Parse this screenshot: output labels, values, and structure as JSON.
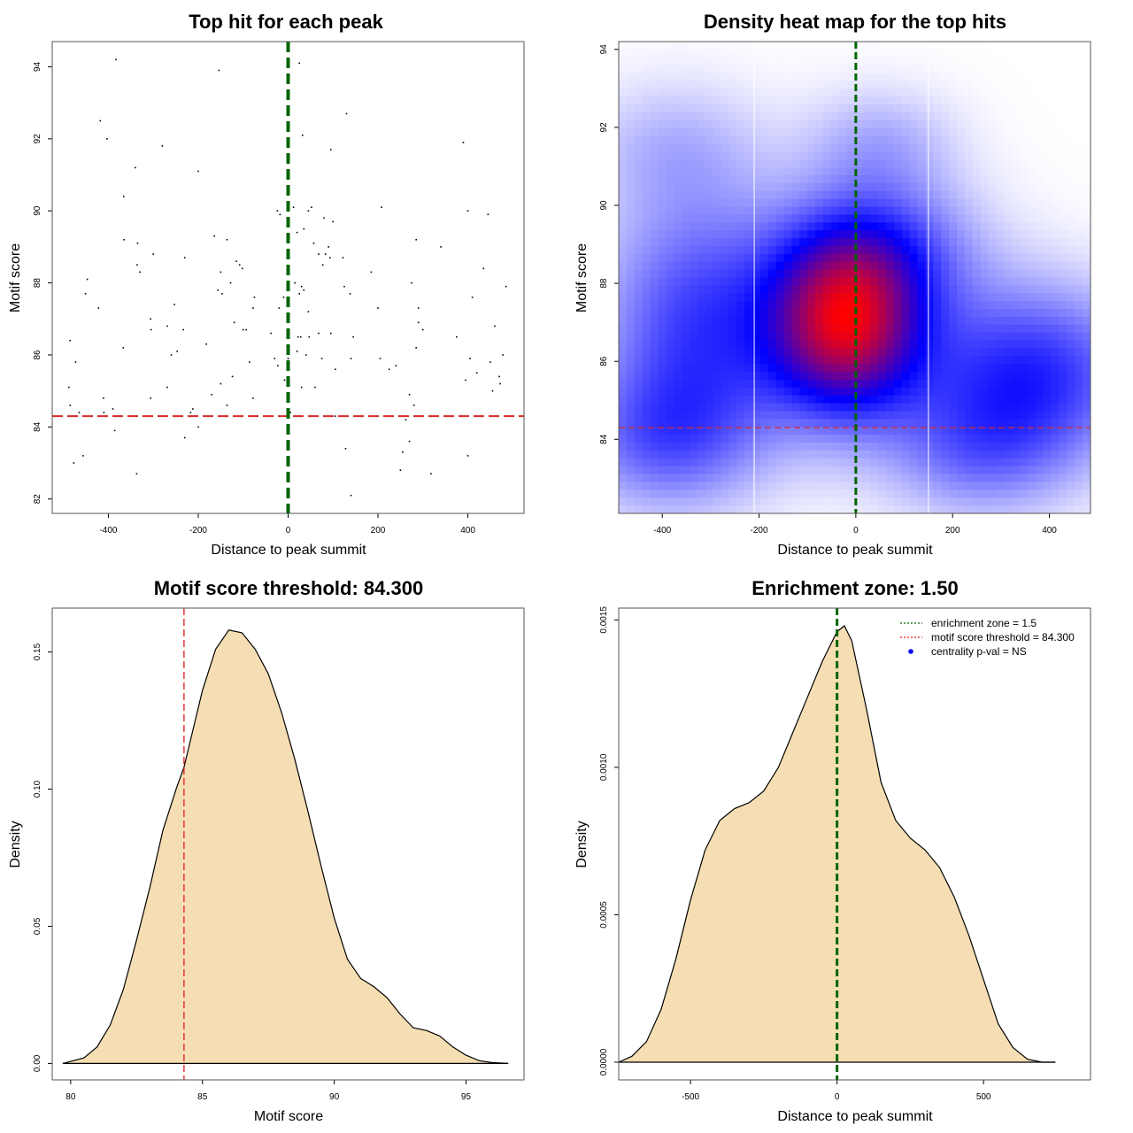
{
  "chart_data": [
    {
      "id": "scatter",
      "type": "scatter",
      "title": "Top hit for each peak",
      "xlabel": "Distance to peak summit",
      "ylabel": "Motif score",
      "xlim": [
        -525,
        525
      ],
      "ylim": [
        81.6,
        94.7
      ],
      "xticks": [
        -400,
        -200,
        0,
        200,
        400
      ],
      "yticks": [
        82,
        84,
        86,
        88,
        90,
        92,
        94
      ],
      "xtick_labels": [
        "-400",
        "-200",
        "0",
        "200",
        "400"
      ],
      "ytick_labels": [
        "82",
        "84",
        "86",
        "88",
        "90",
        "92",
        "94"
      ],
      "hline": {
        "value": 84.3,
        "color": "#d62728",
        "style": "dashed"
      },
      "vline": {
        "value": 0,
        "color": "#006400",
        "style": "dashed"
      },
      "points": [
        [
          -383,
          94.2
        ],
        [
          -154,
          93.9
        ],
        [
          25,
          94.1
        ],
        [
          -418,
          92.5
        ],
        [
          -403,
          92.0
        ],
        [
          -280,
          91.8
        ],
        [
          130,
          92.7
        ],
        [
          32,
          92.1
        ],
        [
          -340,
          91.2
        ],
        [
          -200,
          91.1
        ],
        [
          95,
          91.7
        ],
        [
          390,
          91.9
        ],
        [
          -366,
          90.4
        ],
        [
          -24,
          90.0
        ],
        [
          -18,
          89.9
        ],
        [
          12,
          90.1
        ],
        [
          45,
          90.0
        ],
        [
          52,
          90.1
        ],
        [
          80,
          89.8
        ],
        [
          100,
          89.7
        ],
        [
          208,
          90.1
        ],
        [
          400,
          90.0
        ],
        [
          445,
          89.9
        ],
        [
          -365,
          89.2
        ],
        [
          -335,
          89.1
        ],
        [
          -164,
          89.3
        ],
        [
          -136,
          89.2
        ],
        [
          20,
          89.4
        ],
        [
          35,
          89.5
        ],
        [
          57,
          89.1
        ],
        [
          68,
          88.8
        ],
        [
          90,
          89.0
        ],
        [
          285,
          89.2
        ],
        [
          340,
          89.0
        ],
        [
          -300,
          88.8
        ],
        [
          -230,
          88.7
        ],
        [
          -115,
          88.6
        ],
        [
          -108,
          88.5
        ],
        [
          -102,
          88.4
        ],
        [
          -336,
          88.5
        ],
        [
          -330,
          88.3
        ],
        [
          -150,
          88.3
        ],
        [
          77,
          88.5
        ],
        [
          83,
          88.8
        ],
        [
          93,
          88.7
        ],
        [
          122,
          88.7
        ],
        [
          185,
          88.3
        ],
        [
          435,
          88.4
        ],
        [
          -447,
          88.1
        ],
        [
          -451,
          87.7
        ],
        [
          -156,
          87.8
        ],
        [
          -147,
          87.7
        ],
        [
          -128,
          88.0
        ],
        [
          -75,
          87.6
        ],
        [
          -10,
          87.6
        ],
        [
          15,
          88.0
        ],
        [
          25,
          87.7
        ],
        [
          30,
          87.9
        ],
        [
          35,
          87.8
        ],
        [
          125,
          87.9
        ],
        [
          138,
          87.7
        ],
        [
          275,
          88.0
        ],
        [
          410,
          87.6
        ],
        [
          485,
          87.9
        ],
        [
          -422,
          87.3
        ],
        [
          -253,
          87.4
        ],
        [
          -78,
          87.3
        ],
        [
          -20,
          87.3
        ],
        [
          45,
          87.2
        ],
        [
          200,
          87.3
        ],
        [
          290,
          87.3
        ],
        [
          -306,
          87.0
        ],
        [
          -305,
          86.7
        ],
        [
          -269,
          86.8
        ],
        [
          -233,
          86.7
        ],
        [
          -120,
          86.9
        ],
        [
          -100,
          86.7
        ],
        [
          -93,
          86.7
        ],
        [
          -38,
          86.6
        ],
        [
          22,
          86.5
        ],
        [
          28,
          86.5
        ],
        [
          47,
          86.5
        ],
        [
          68,
          86.6
        ],
        [
          95,
          86.6
        ],
        [
          145,
          86.5
        ],
        [
          290,
          86.9
        ],
        [
          300,
          86.7
        ],
        [
          375,
          86.5
        ],
        [
          460,
          86.8
        ],
        [
          -485,
          86.4
        ],
        [
          -367,
          86.2
        ],
        [
          -182,
          86.3
        ],
        [
          -260,
          86.0
        ],
        [
          -247,
          86.1
        ],
        [
          -473,
          85.8
        ],
        [
          -86,
          85.8
        ],
        [
          -30,
          85.9
        ],
        [
          -23,
          85.7
        ],
        [
          0,
          85.9
        ],
        [
          -8,
          85.3
        ],
        [
          20,
          86.1
        ],
        [
          40,
          86.0
        ],
        [
          75,
          85.9
        ],
        [
          105,
          85.6
        ],
        [
          140,
          85.9
        ],
        [
          205,
          85.9
        ],
        [
          225,
          85.6
        ],
        [
          240,
          85.7
        ],
        [
          285,
          86.2
        ],
        [
          405,
          85.9
        ],
        [
          420,
          85.5
        ],
        [
          450,
          85.8
        ],
        [
          478,
          86.0
        ],
        [
          -488,
          85.1
        ],
        [
          -124,
          85.4
        ],
        [
          -150,
          85.2
        ],
        [
          -269,
          85.1
        ],
        [
          -170,
          84.9
        ],
        [
          -306,
          84.8
        ],
        [
          -411,
          84.8
        ],
        [
          -78,
          84.8
        ],
        [
          30,
          85.1
        ],
        [
          60,
          85.1
        ],
        [
          270,
          84.9
        ],
        [
          395,
          85.3
        ],
        [
          470,
          85.4
        ],
        [
          472,
          85.2
        ],
        [
          -485,
          84.6
        ],
        [
          -465,
          84.4
        ],
        [
          -410,
          84.4
        ],
        [
          -390,
          84.5
        ],
        [
          -212,
          84.5
        ],
        [
          -136,
          84.6
        ],
        [
          -217,
          84.4
        ],
        [
          5,
          84.4
        ],
        [
          105,
          84.3
        ],
        [
          280,
          84.6
        ],
        [
          455,
          85.0
        ],
        [
          -386,
          83.9
        ],
        [
          -200,
          84.0
        ],
        [
          -230,
          83.7
        ],
        [
          262,
          84.2
        ],
        [
          270,
          83.6
        ],
        [
          -477,
          83.0
        ],
        [
          -456,
          83.2
        ],
        [
          128,
          83.4
        ],
        [
          255,
          83.3
        ],
        [
          400,
          83.2
        ],
        [
          -337,
          82.7
        ],
        [
          250,
          82.8
        ],
        [
          318,
          82.7
        ],
        [
          140,
          82.1
        ]
      ]
    },
    {
      "id": "heatmap",
      "type": "heatmap",
      "title": "Density heat map for the top hits",
      "xlabel": "Distance to peak summit",
      "ylabel": "Motif score",
      "xlim": [
        -490,
        485
      ],
      "ylim": [
        82.1,
        94.2
      ],
      "xticks": [
        -400,
        -200,
        0,
        200,
        400
      ],
      "yticks": [
        84,
        86,
        88,
        90,
        92,
        94
      ],
      "xtick_labels": [
        "-400",
        "-200",
        "0",
        "200",
        "400"
      ],
      "ytick_labels": [
        "84",
        "86",
        "88",
        "90",
        "92",
        "94"
      ],
      "color_scale": [
        "#ffffff",
        "#0000ff",
        "#ff0000"
      ],
      "density_peaks": [
        {
          "x": -20,
          "y": 86.9,
          "weight": 1.0,
          "sx": 110,
          "sy": 1.6
        },
        {
          "x": -320,
          "y": 87.0,
          "weight": 0.45,
          "sx": 150,
          "sy": 2.3
        },
        {
          "x": 360,
          "y": 85.7,
          "weight": 0.5,
          "sx": 170,
          "sy": 1.6
        },
        {
          "x": 60,
          "y": 88.9,
          "weight": 0.35,
          "sx": 140,
          "sy": 1.3
        },
        {
          "x": -400,
          "y": 84.0,
          "weight": 0.3,
          "sx": 140,
          "sy": 1.3
        },
        {
          "x": 250,
          "y": 83.6,
          "weight": 0.25,
          "sx": 140,
          "sy": 1.2
        },
        {
          "x": -380,
          "y": 91.5,
          "weight": 0.15,
          "sx": 130,
          "sy": 1.2
        },
        {
          "x": 50,
          "y": 91.6,
          "weight": 0.18,
          "sx": 110,
          "sy": 1.0
        }
      ],
      "hline": {
        "value": 84.3,
        "color": "#d62728",
        "style": "dashed"
      },
      "vline": {
        "value": 0,
        "color": "#006400",
        "style": "dashed"
      },
      "white_vlines": [
        -210,
        150
      ]
    },
    {
      "id": "density_score",
      "type": "area",
      "title": "Motif score threshold: 84.300",
      "xlabel": "Motif score",
      "ylabel": "Density",
      "xlim": [
        79.3,
        97.2
      ],
      "ylim": [
        -0.006,
        0.166
      ],
      "xticks": [
        80,
        85,
        90,
        95
      ],
      "yticks": [
        0.0,
        0.05,
        0.1,
        0.15
      ],
      "xtick_labels": [
        "80",
        "85",
        "90",
        "95"
      ],
      "ytick_labels": [
        "0.00",
        "0.05",
        "0.10",
        "0.15"
      ],
      "fill_color": "#f5deb3",
      "vline": {
        "value": 84.3,
        "color": "#e41a1c",
        "style": "dashed"
      },
      "x": [
        79.7,
        80.5,
        81.0,
        81.5,
        82.0,
        82.5,
        83.0,
        83.5,
        84.0,
        84.3,
        84.7,
        85.0,
        85.5,
        86.0,
        86.5,
        87.0,
        87.5,
        88.0,
        88.5,
        89.0,
        89.5,
        90.0,
        90.5,
        91.0,
        91.5,
        92.0,
        92.5,
        93.0,
        93.5,
        94.0,
        94.5,
        95.0,
        95.5,
        96.0,
        96.6
      ],
      "y": [
        0.0,
        0.002,
        0.006,
        0.014,
        0.027,
        0.045,
        0.064,
        0.085,
        0.1,
        0.108,
        0.124,
        0.136,
        0.151,
        0.158,
        0.157,
        0.151,
        0.142,
        0.128,
        0.111,
        0.092,
        0.072,
        0.053,
        0.038,
        0.031,
        0.028,
        0.024,
        0.018,
        0.013,
        0.012,
        0.01,
        0.006,
        0.003,
        0.001,
        0.0003,
        0.0
      ]
    },
    {
      "id": "density_distance",
      "type": "area",
      "title": "Enrichment zone: 1.50",
      "xlabel": "Distance to peak summit",
      "ylabel": "Density",
      "xlim": [
        -745,
        865
      ],
      "ylim": [
        -6e-05,
        0.00154
      ],
      "xticks": [
        -500,
        0,
        500
      ],
      "yticks": [
        0.0,
        0.0005,
        0.001,
        0.0015
      ],
      "xtick_labels": [
        "-500",
        "0",
        "500"
      ],
      "ytick_labels": [
        "0.0000",
        "0.0005",
        "0.0010",
        "0.0015"
      ],
      "fill_color": "#f5deb3",
      "vline": {
        "value": 0,
        "color": "#006400",
        "style": "dashed"
      },
      "x": [
        -745,
        -700,
        -650,
        -600,
        -550,
        -500,
        -450,
        -400,
        -350,
        -300,
        -250,
        -200,
        -150,
        -100,
        -50,
        0,
        25,
        50,
        100,
        150,
        200,
        250,
        300,
        350,
        400,
        450,
        500,
        550,
        600,
        650,
        700,
        745
      ],
      "y": [
        0.0,
        2e-05,
        7e-05,
        0.00018,
        0.00035,
        0.00055,
        0.00072,
        0.00082,
        0.00086,
        0.00088,
        0.00092,
        0.001,
        0.00112,
        0.00124,
        0.00136,
        0.00146,
        0.00148,
        0.00143,
        0.0012,
        0.00095,
        0.00082,
        0.00076,
        0.00072,
        0.00066,
        0.00056,
        0.00043,
        0.00028,
        0.00013,
        5e-05,
        1e-05,
        0.0,
        0.0
      ],
      "legend": {
        "position": "top-right",
        "entries": [
          {
            "label": "enrichment zone = 1.5",
            "color": "#006400",
            "symbol": "dotted-line"
          },
          {
            "label": "motif score threshold = 84.300",
            "color": "#e41a1c",
            "symbol": "dotted-line"
          },
          {
            "label": "centrality p-val = NS",
            "color": "#0000ff",
            "symbol": "dot"
          }
        ]
      }
    }
  ]
}
